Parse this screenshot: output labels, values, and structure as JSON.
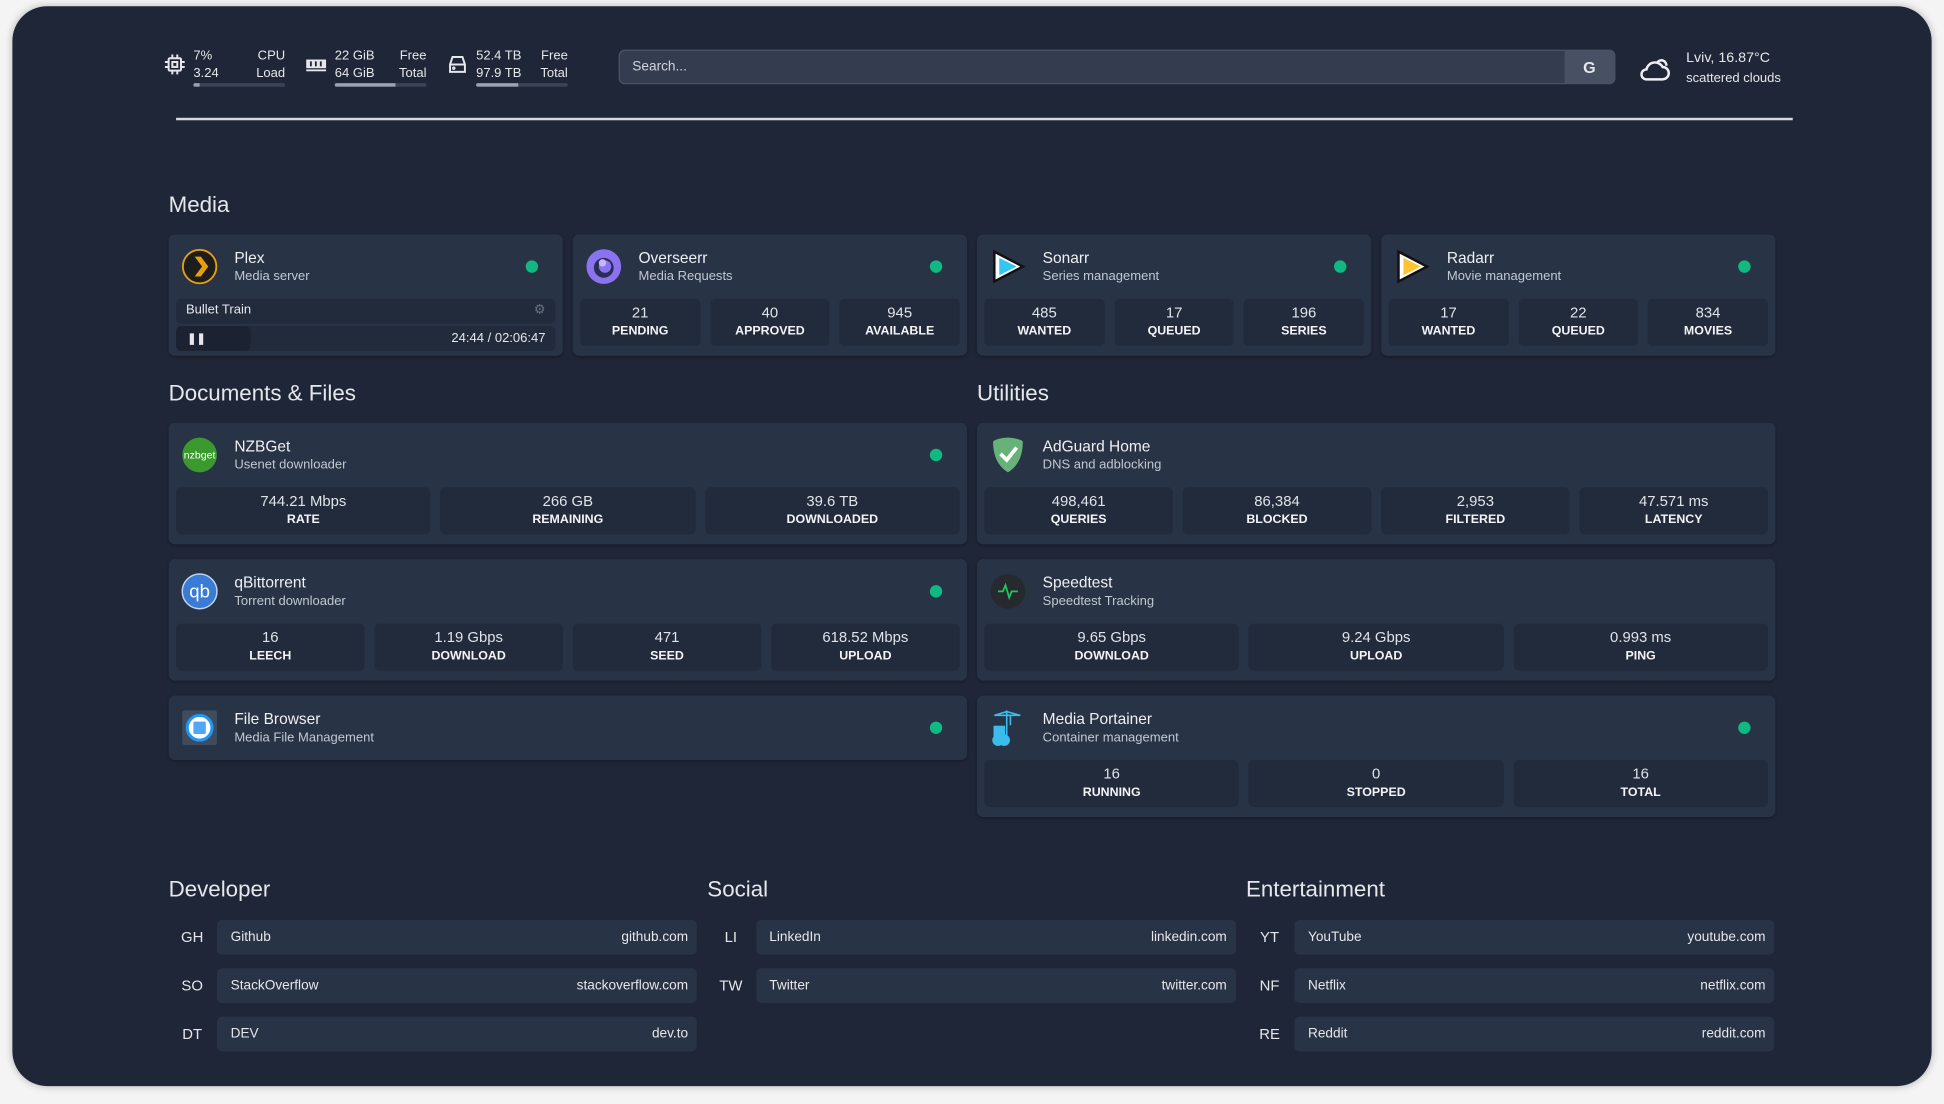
{
  "resources": {
    "cpu": {
      "icon": "cpu-icon",
      "v1": "7%",
      "v2": "3.24",
      "l1": "CPU",
      "l2": "Load",
      "percent": 7
    },
    "memory": {
      "icon": "memory-icon",
      "v1": "22 GiB",
      "v2": "64 GiB",
      "l1": "Free",
      "l2": "Total",
      "percent": 66
    },
    "disk": {
      "icon": "disk-icon",
      "v1": "52.4 TB",
      "v2": "97.9 TB",
      "l1": "Free",
      "l2": "Total",
      "percent": 46
    }
  },
  "search": {
    "placeholder": "Search...",
    "provider_label": "G"
  },
  "weather": {
    "icon": "cloud-icon",
    "location_temp": "Lviv, 16.87°C",
    "condition": "scattered clouds"
  },
  "colors": {
    "background": "#1f2637",
    "card": "#283345",
    "status_ok": "#10b981"
  },
  "sections": {
    "media": {
      "title": "Media",
      "cards": [
        {
          "name": "Plex",
          "desc": "Media server",
          "icon": "plex-icon",
          "status": "online",
          "now_playing": {
            "title": "Bullet Train",
            "time": "24:44 / 02:06:47",
            "progress_percent": 19.5
          }
        },
        {
          "name": "Overseerr",
          "desc": "Media Requests",
          "icon": "overseerr-icon",
          "status": "online",
          "stats": [
            {
              "value": "21",
              "label": "PENDING"
            },
            {
              "value": "40",
              "label": "APPROVED"
            },
            {
              "value": "945",
              "label": "AVAILABLE"
            }
          ]
        },
        {
          "name": "Sonarr",
          "desc": "Series management",
          "icon": "sonarr-icon",
          "status": "online",
          "stats": [
            {
              "value": "485",
              "label": "WANTED"
            },
            {
              "value": "17",
              "label": "QUEUED"
            },
            {
              "value": "196",
              "label": "SERIES"
            }
          ]
        },
        {
          "name": "Radarr",
          "desc": "Movie management",
          "icon": "radarr-icon",
          "status": "online",
          "stats": [
            {
              "value": "17",
              "label": "WANTED"
            },
            {
              "value": "22",
              "label": "QUEUED"
            },
            {
              "value": "834",
              "label": "MOVIES"
            }
          ]
        }
      ]
    },
    "documents": {
      "title": "Documents & Files",
      "cards": [
        {
          "name": "NZBGet",
          "desc": "Usenet downloader",
          "icon": "nzbget-icon",
          "status": "online",
          "stats": [
            {
              "value": "744.21 Mbps",
              "label": "RATE"
            },
            {
              "value": "266 GB",
              "label": "REMAINING"
            },
            {
              "value": "39.6 TB",
              "label": "DOWNLOADED"
            }
          ]
        },
        {
          "name": "qBittorrent",
          "desc": "Torrent downloader",
          "icon": "qbittorrent-icon",
          "status": "online",
          "stats": [
            {
              "value": "16",
              "label": "LEECH"
            },
            {
              "value": "1.19 Gbps",
              "label": "DOWNLOAD"
            },
            {
              "value": "471",
              "label": "SEED"
            },
            {
              "value": "618.52 Mbps",
              "label": "UPLOAD"
            }
          ]
        },
        {
          "name": "File Browser",
          "desc": "Media File Management",
          "icon": "filebrowser-icon",
          "status": "online"
        }
      ]
    },
    "utilities": {
      "title": "Utilities",
      "cards": [
        {
          "name": "AdGuard Home",
          "desc": "DNS and adblocking",
          "icon": "adguard-icon",
          "stats": [
            {
              "value": "498,461",
              "label": "QUERIES"
            },
            {
              "value": "86,384",
              "label": "BLOCKED"
            },
            {
              "value": "2,953",
              "label": "FILTERED"
            },
            {
              "value": "47.571 ms",
              "label": "LATENCY"
            }
          ]
        },
        {
          "name": "Speedtest",
          "desc": "Speedtest Tracking",
          "icon": "speedtest-icon",
          "stats": [
            {
              "value": "9.65 Gbps",
              "label": "DOWNLOAD"
            },
            {
              "value": "9.24 Gbps",
              "label": "UPLOAD"
            },
            {
              "value": "0.993 ms",
              "label": "PING"
            }
          ]
        },
        {
          "name": "Media Portainer",
          "desc": "Container management",
          "icon": "portainer-icon",
          "status": "online",
          "stats": [
            {
              "value": "16",
              "label": "RUNNING"
            },
            {
              "value": "0",
              "label": "STOPPED"
            },
            {
              "value": "16",
              "label": "TOTAL"
            }
          ]
        }
      ]
    }
  },
  "bookmarks": [
    {
      "title": "Developer",
      "items": [
        {
          "abbr": "GH",
          "name": "Github",
          "href": "github.com"
        },
        {
          "abbr": "SO",
          "name": "StackOverflow",
          "href": "stackoverflow.com"
        },
        {
          "abbr": "DT",
          "name": "DEV",
          "href": "dev.to"
        }
      ]
    },
    {
      "title": "Social",
      "items": [
        {
          "abbr": "LI",
          "name": "LinkedIn",
          "href": "linkedin.com"
        },
        {
          "abbr": "TW",
          "name": "Twitter",
          "href": "twitter.com"
        }
      ]
    },
    {
      "title": "Entertainment",
      "items": [
        {
          "abbr": "YT",
          "name": "YouTube",
          "href": "youtube.com"
        },
        {
          "abbr": "NF",
          "name": "Netflix",
          "href": "netflix.com"
        },
        {
          "abbr": "RE",
          "name": "Reddit",
          "href": "reddit.com"
        }
      ]
    }
  ]
}
